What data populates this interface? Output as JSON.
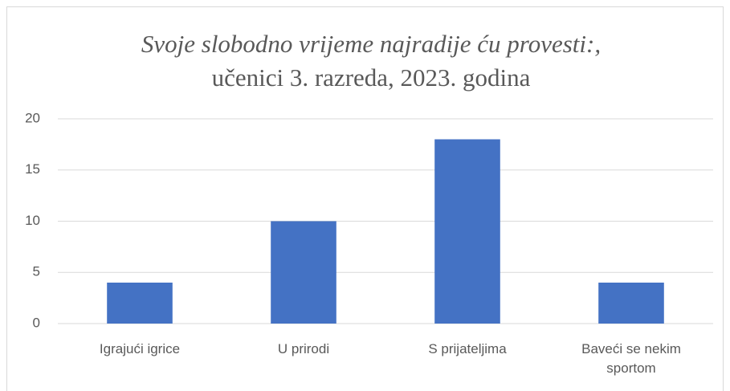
{
  "chart_data": {
    "type": "bar",
    "title": "Svoje slobodno vrijeme najradije ću provesti:,",
    "subtitle": "učenici 3. razreda, 2023. godina",
    "categories": [
      "Igrajući igrice",
      "U prirodi",
      "S prijateljima",
      "Baveći se nekim sportom"
    ],
    "values": [
      4,
      10,
      18,
      4
    ],
    "color": "#4472c4",
    "ylim": [
      0,
      20
    ],
    "yticks": [
      0,
      5,
      10,
      15,
      20
    ],
    "grid": true
  }
}
